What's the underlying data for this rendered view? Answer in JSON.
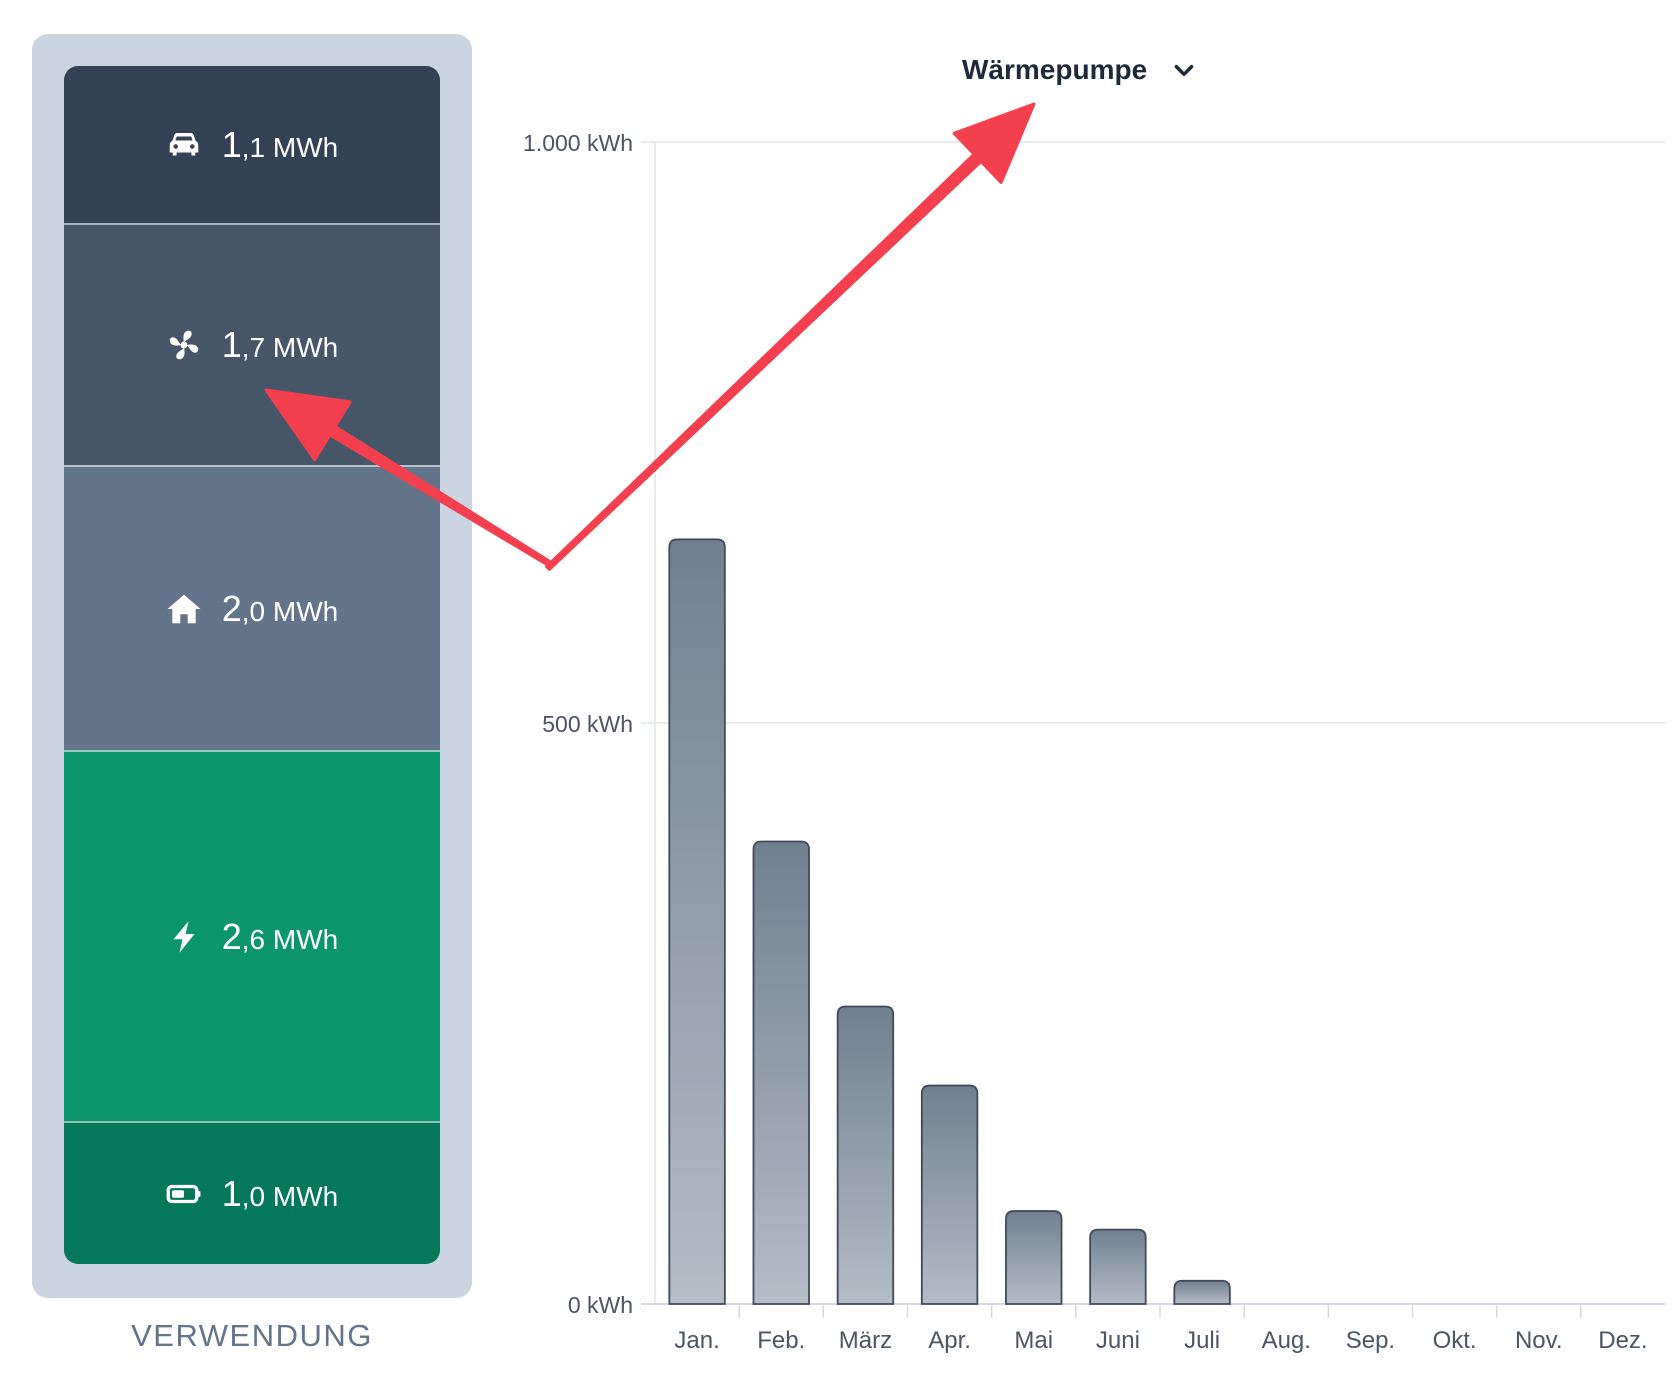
{
  "usage_panel": {
    "label": "VERWENDUNG",
    "segments": [
      {
        "icon": "car-icon",
        "value_int": "1",
        "value_rest": ",1 MWh",
        "value_mwh": 1.1,
        "color": "#334155"
      },
      {
        "icon": "fan-icon",
        "value_int": "1",
        "value_rest": ",7 MWh",
        "value_mwh": 1.7,
        "color": "#475569"
      },
      {
        "icon": "house-icon",
        "value_int": "2",
        "value_rest": ",0 MWh",
        "value_mwh": 2.0,
        "color": "#64748b"
      },
      {
        "icon": "lightning-icon",
        "value_int": "2",
        "value_rest": ",6 MWh",
        "value_mwh": 2.6,
        "color": "#0a9669"
      },
      {
        "icon": "battery-icon",
        "value_int": "1",
        "value_rest": ",0 MWh",
        "value_mwh": 1.0,
        "color": "#047857"
      }
    ]
  },
  "selector": {
    "label": "Wärmepumpe",
    "icon": "chevron-down-icon"
  },
  "annotation": {
    "color": "#f43f4f"
  },
  "chart_data": {
    "type": "bar",
    "categories": [
      "Jan.",
      "Feb.",
      "März",
      "Apr.",
      "Mai",
      "Juni",
      "Juli",
      "Aug.",
      "Sep.",
      "Okt.",
      "Nov.",
      "Dez."
    ],
    "values": [
      658,
      398,
      256,
      188,
      80,
      64,
      20,
      0,
      0,
      0,
      0,
      0
    ],
    "unit": "kWh",
    "ylim": [
      0,
      1000
    ],
    "yticks": [
      {
        "value": 0,
        "label": "0 kWh"
      },
      {
        "value": 500,
        "label": "500 kWh"
      },
      {
        "value": 1000,
        "label": "1.000 kWh"
      }
    ],
    "grid": true,
    "bar_color_top": "#71808f",
    "bar_color_bottom": "#b4bcc6",
    "bar_stroke": "#3f4a5a"
  }
}
